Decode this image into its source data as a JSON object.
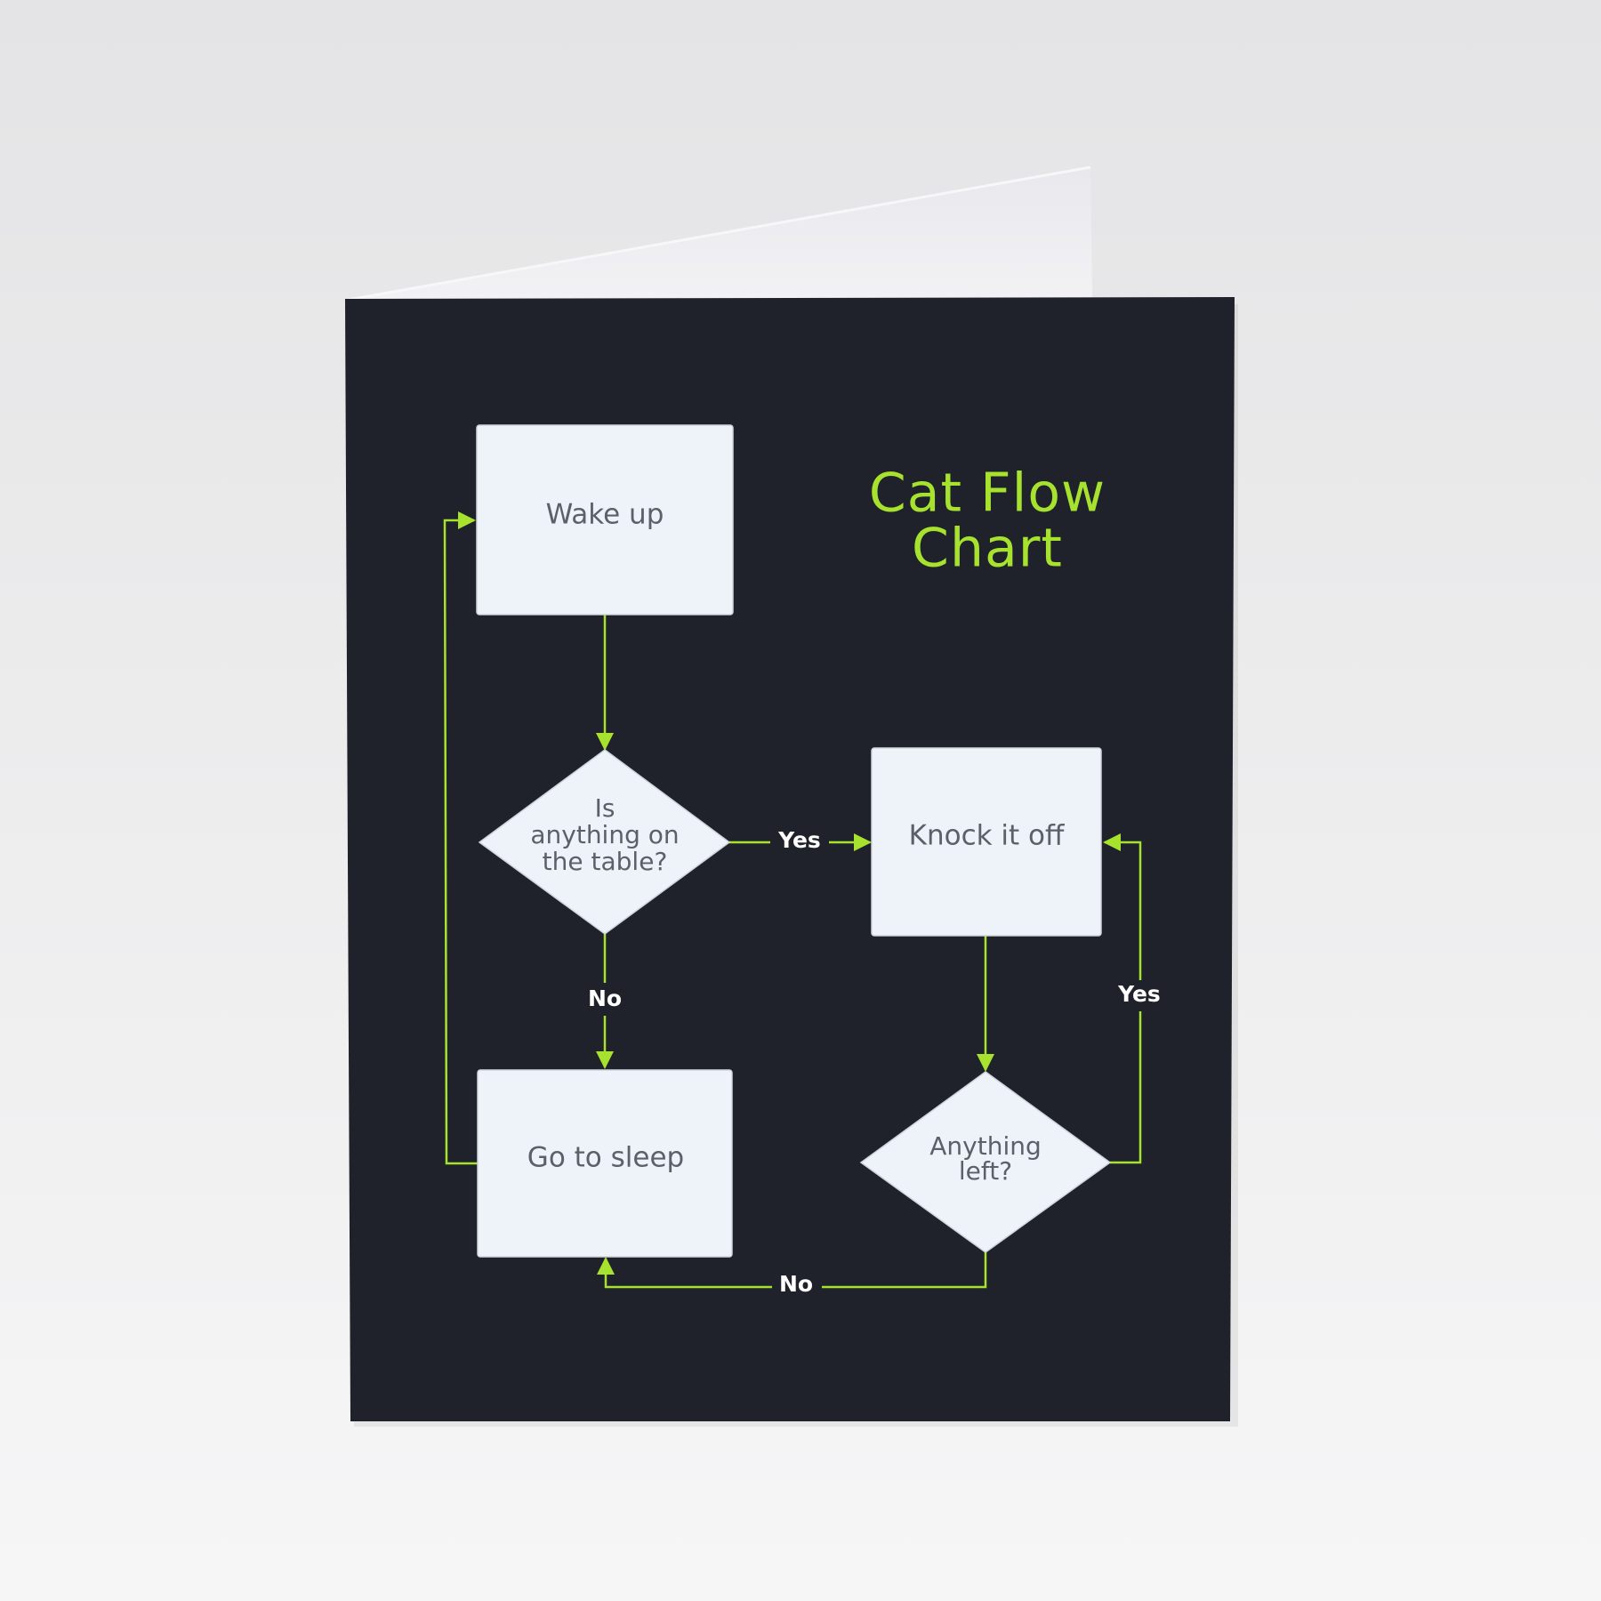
{
  "title": {
    "line1": "Cat Flow",
    "line2": "Chart"
  },
  "nodes": {
    "wake_up": "Wake up",
    "question_table": {
      "line1": "Is",
      "line2": "anything on",
      "line3": "the table?"
    },
    "knock_off": "Knock it off",
    "question_left": {
      "line1": "Anything",
      "line2": "left?"
    },
    "sleep": "Go to sleep"
  },
  "edges": {
    "table_yes": "Yes",
    "table_no": "No",
    "left_yes": "Yes",
    "left_no": "No"
  },
  "colors": {
    "card": "#1f222a",
    "accent": "#a6e22e",
    "node_fill": "#eef2f9",
    "node_text": "#5c6068"
  }
}
